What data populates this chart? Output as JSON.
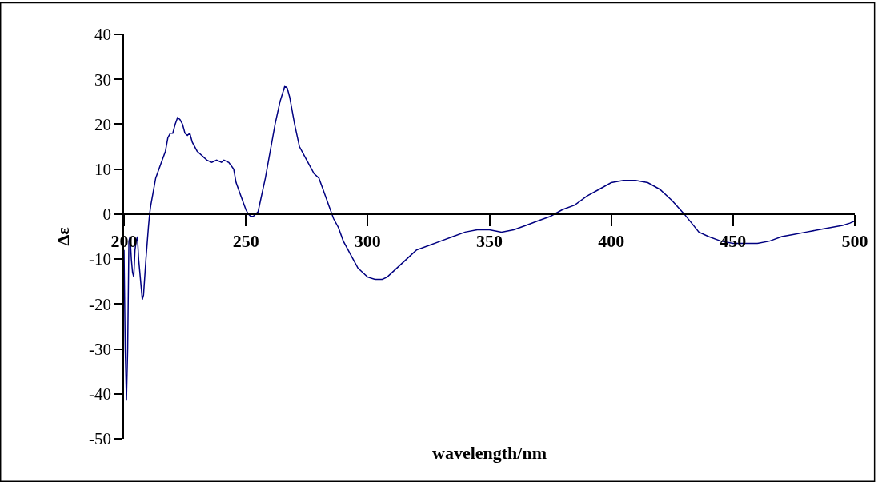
{
  "chart_data": {
    "type": "line",
    "xlabel": "wavelength/nm",
    "ylabel": "Δε",
    "x": [
      200,
      200.5,
      201,
      201.5,
      202,
      202.5,
      203,
      203.5,
      204,
      204.5,
      205,
      205.5,
      206,
      207,
      207.5,
      208,
      209,
      210,
      210.5,
      211,
      212,
      213,
      215,
      217,
      218,
      219,
      220,
      221,
      222,
      223,
      224,
      225,
      226,
      227,
      228,
      230,
      232,
      234,
      236,
      238,
      240,
      241,
      243,
      245,
      246,
      248,
      250,
      251,
      252,
      253,
      254,
      255,
      256,
      258,
      260,
      262,
      264,
      266,
      267,
      268,
      270,
      272,
      274,
      276,
      278,
      280,
      282,
      284,
      286,
      288,
      290,
      292,
      294,
      296,
      298,
      300,
      303,
      306,
      308,
      312,
      316,
      320,
      325,
      330,
      335,
      340,
      345,
      350,
      355,
      360,
      365,
      370,
      375,
      380,
      385,
      390,
      395,
      400,
      405,
      410,
      415,
      420,
      425,
      430,
      433,
      436,
      440,
      445,
      450,
      455,
      460,
      465,
      470,
      475,
      480,
      485,
      490,
      495,
      498,
      500
    ],
    "series": [
      {
        "color": "#000080",
        "values": [
          -8,
          -30,
          -41.5,
          -30,
          -6,
          -5,
          -10,
          -13,
          -14,
          -8,
          -6,
          -5,
          -10,
          -16,
          -19,
          -18,
          -10,
          -3,
          0,
          2,
          5,
          8,
          11,
          14,
          17,
          18,
          18,
          20,
          21.5,
          21,
          20,
          18,
          17.5,
          18,
          16,
          14,
          13,
          12,
          11.5,
          12,
          11.5,
          12,
          11.5,
          10,
          7,
          4,
          1,
          0,
          -0.5,
          -0.5,
          0,
          0.5,
          3,
          8,
          14,
          20,
          25,
          28.5,
          28,
          26,
          20,
          15,
          13,
          11,
          9,
          8,
          5,
          2,
          -1,
          -3,
          -6,
          -8,
          -10,
          -12,
          -13,
          -14,
          -14.5,
          -14.5,
          -14,
          -12,
          -10,
          -8,
          -7,
          -6,
          -5,
          -4,
          -3.5,
          -3.5,
          -4,
          -3.5,
          -2.5,
          -1.5,
          -0.5,
          1,
          2,
          4,
          5.5,
          7,
          7.5,
          7.5,
          7,
          5.5,
          3,
          0,
          -2,
          -4,
          -5,
          -6,
          -6.5,
          -6.5,
          -6.5,
          -6,
          -5,
          -4.5,
          -4,
          -3.5,
          -3,
          -2.5,
          -2,
          -1.5
        ]
      }
    ],
    "xlim": [
      200,
      500
    ],
    "xticks": [
      200,
      250,
      300,
      350,
      400,
      450,
      500
    ],
    "ylim": [
      -50,
      40
    ],
    "yticks": [
      -50,
      -40,
      -30,
      -20,
      -10,
      0,
      10,
      20,
      30,
      40
    ],
    "marker": "none",
    "line_style": "solid"
  }
}
